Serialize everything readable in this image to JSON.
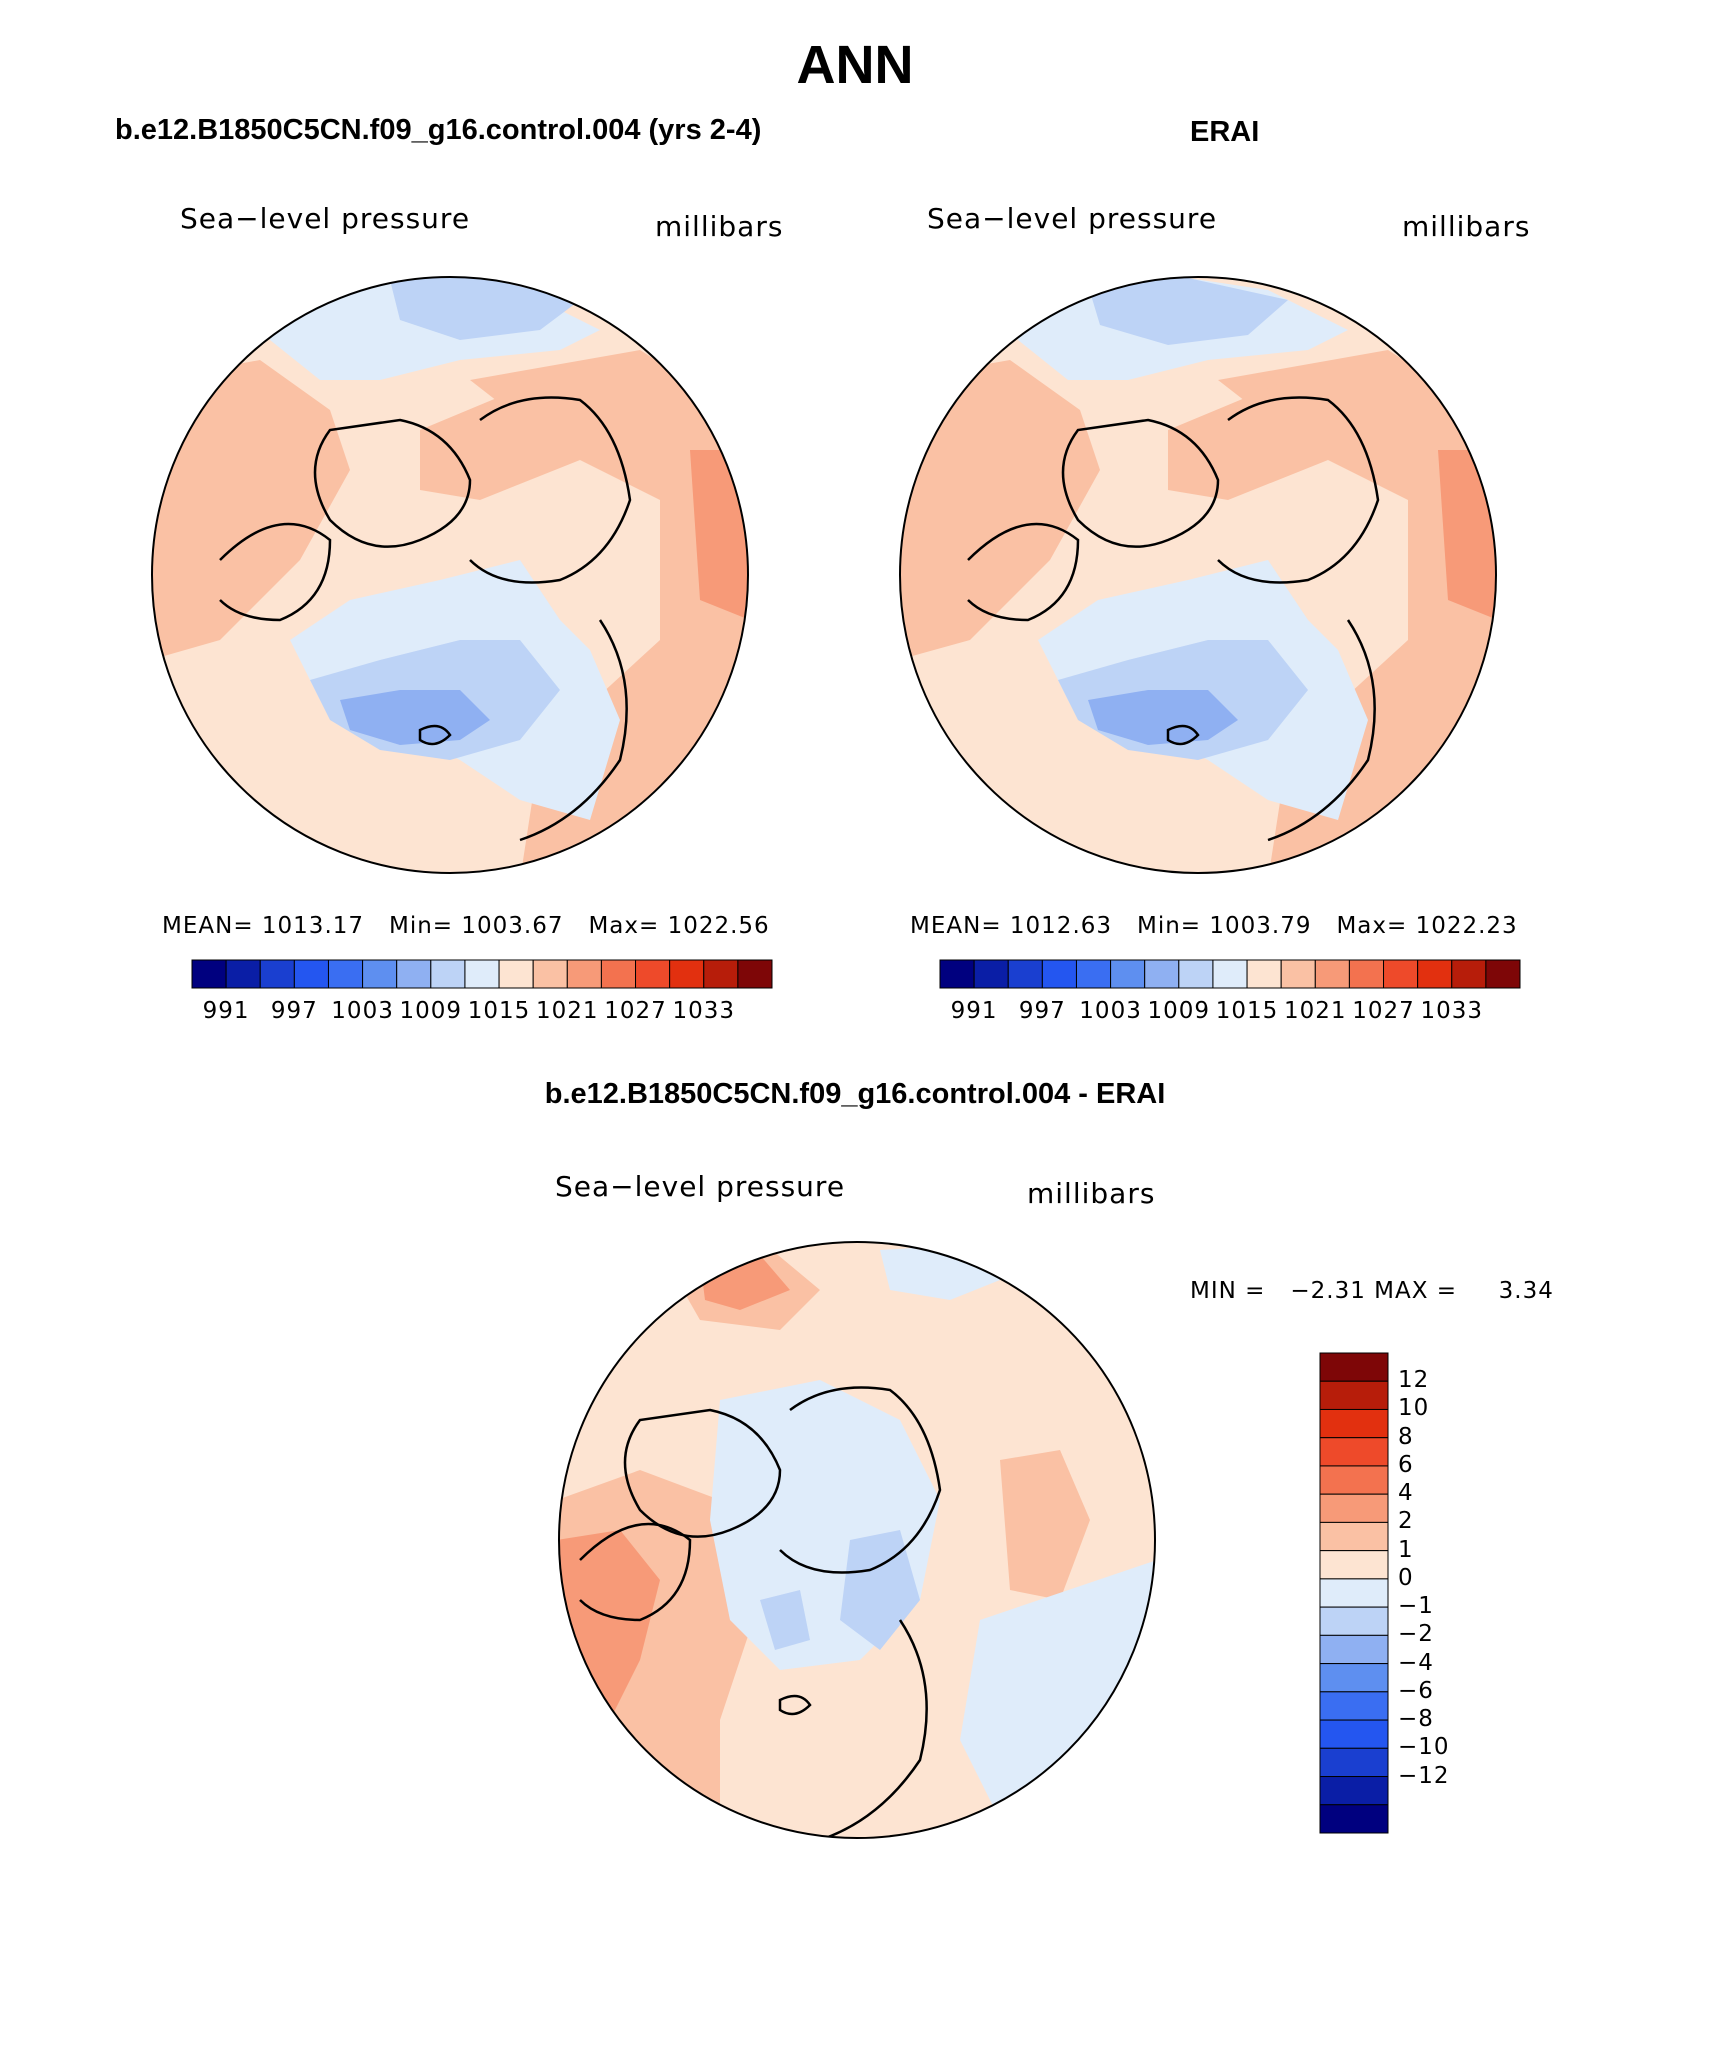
{
  "title": "ANN",
  "panels": [
    {
      "case": "b.e12.B1850C5CN.f09_g16.control.004 (yrs 2-4)",
      "variable": "Sea−level pressure",
      "units": "millibars",
      "stats": {
        "mean_label": "MEAN=",
        "mean": "1013.17",
        "min_label": "Min=",
        "min": "1003.67",
        "max_label": "Max=",
        "max": "1022.56"
      },
      "colorbar_ticks": [
        "991",
        "997",
        "1003",
        "1009",
        "1015",
        "1021",
        "1027",
        "1033"
      ]
    },
    {
      "case": "ERAI",
      "variable": "Sea−level pressure",
      "units": "millibars",
      "stats": {
        "mean_label": "MEAN=",
        "mean": "1012.63",
        "min_label": "Min=",
        "min": "1003.79",
        "max_label": "Max=",
        "max": "1022.23"
      },
      "colorbar_ticks": [
        "991",
        "997",
        "1003",
        "1009",
        "1015",
        "1021",
        "1027",
        "1033"
      ]
    },
    {
      "case": "b.e12.B1850C5CN.f09_g16.control.004 - ERAI",
      "variable": "Sea−level pressure",
      "units": "millibars",
      "stats": {
        "min_label": "MIN =",
        "min": "−2.31",
        "max_label": "MAX =",
        "max": "3.34"
      },
      "colorbar_ticks": [
        "12",
        "10",
        "8",
        "6",
        "4",
        "2",
        "1",
        "0",
        "−1",
        "−2",
        "−4",
        "−6",
        "−8",
        "−10",
        "−12"
      ]
    }
  ],
  "colormap_full": [
    "#00007f",
    "#0a1ea6",
    "#1a3fd0",
    "#2456f0",
    "#3a6ef2",
    "#5e8ff0",
    "#8fb0f2",
    "#bdd3f6",
    "#dfecfa",
    "#fde4d2",
    "#fac1a4",
    "#f79a78",
    "#f3724f",
    "#ee4a2a",
    "#e2300f",
    "#b71d0a",
    "#7e0607"
  ],
  "colormap_diff": [
    "#7e0607",
    "#b71d0a",
    "#e2300f",
    "#ee4a2a",
    "#f3724f",
    "#f79a78",
    "#fac1a4",
    "#fde4d2",
    "#dfecfa",
    "#bdd3f6",
    "#8fb0f2",
    "#5e8ff0",
    "#3a6ef2",
    "#2456f0",
    "#1a3fd0",
    "#0a1ea6",
    "#00007f"
  ]
}
